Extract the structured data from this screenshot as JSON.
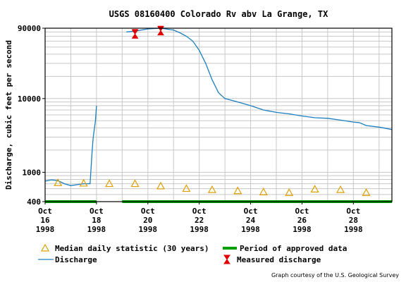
{
  "chart_data": {
    "type": "line",
    "title": "USGS 08160400 Colorado Rv abv La Grange, TX",
    "ylabel": "Discharge, cubic feet per second",
    "xlabel": "",
    "y_scale": "log",
    "ylim": [
      400,
      90000
    ],
    "y_ticks": [
      {
        "value": 90000,
        "label": "90000"
      },
      {
        "value": 10000,
        "label": "10000"
      },
      {
        "value": 1000,
        "label": "1000"
      },
      {
        "value": 400,
        "label": "400"
      }
    ],
    "xlim": [
      "1998-10-16",
      "1998-10-29 12:00"
    ],
    "x_ticks": [
      {
        "date": "1998-10-16",
        "day": "Oct",
        "num": "16",
        "year": "1998"
      },
      {
        "date": "1998-10-18",
        "day": "Oct",
        "num": "18",
        "year": "1998"
      },
      {
        "date": "1998-10-20",
        "day": "Oct",
        "num": "20",
        "year": "1998"
      },
      {
        "date": "1998-10-22",
        "day": "Oct",
        "num": "22",
        "year": "1998"
      },
      {
        "date": "1998-10-24",
        "day": "Oct",
        "num": "24",
        "year": "1998"
      },
      {
        "date": "1998-10-26",
        "day": "Oct",
        "num": "26",
        "year": "1998"
      },
      {
        "date": "1998-10-28",
        "day": "Oct",
        "num": "28",
        "year": "1998"
      }
    ],
    "grid": true,
    "legend_position": "bottom",
    "series": [
      {
        "name": "Discharge",
        "kind": "line",
        "color": "#1a7fbf",
        "segments": [
          [
            [
              "1998-10-16 00:00",
              760
            ],
            [
              "1998-10-16 06:00",
              790
            ],
            [
              "1998-10-16 12:00",
              770
            ],
            [
              "1998-10-16 18:00",
              700
            ],
            [
              "1998-10-17 00:00",
              660
            ],
            [
              "1998-10-17 06:00",
              680
            ],
            [
              "1998-10-17 12:00",
              700
            ],
            [
              "1998-10-17 16:00",
              700
            ],
            [
              "1998-10-17 18:00",
              700
            ],
            [
              "1998-10-17 20:00",
              2000
            ],
            [
              "1998-10-17 21:00",
              3000
            ],
            [
              "1998-10-17 23:00",
              5000
            ],
            [
              "1998-10-18 00:00",
              8000
            ]
          ],
          [
            [
              "1998-10-19 04:00",
              80000
            ],
            [
              "1998-10-19 12:00",
              82000
            ],
            [
              "1998-10-20 00:00",
              88000
            ],
            [
              "1998-10-20 12:00",
              90000
            ],
            [
              "1998-10-21 00:00",
              85000
            ],
            [
              "1998-10-21 06:00",
              78000
            ],
            [
              "1998-10-21 12:00",
              70000
            ],
            [
              "1998-10-21 18:00",
              60000
            ],
            [
              "1998-10-22 00:00",
              45000
            ],
            [
              "1998-10-22 06:00",
              30000
            ],
            [
              "1998-10-22 12:00",
              18000
            ],
            [
              "1998-10-22 18:00",
              12000
            ],
            [
              "1998-10-23 00:00",
              10000
            ],
            [
              "1998-10-23 12:00",
              9000
            ],
            [
              "1998-10-24 00:00",
              8000
            ],
            [
              "1998-10-24 12:00",
              7000
            ],
            [
              "1998-10-25 00:00",
              6500
            ],
            [
              "1998-10-25 12:00",
              6200
            ],
            [
              "1998-10-26 00:00",
              5800
            ],
            [
              "1998-10-26 12:00",
              5500
            ],
            [
              "1998-10-27 00:00",
              5400
            ],
            [
              "1998-10-27 12:00",
              5100
            ],
            [
              "1998-10-28 00:00",
              4800
            ],
            [
              "1998-10-28 06:00",
              4700
            ],
            [
              "1998-10-28 12:00",
              4300
            ],
            [
              "1998-10-29 00:00",
              4100
            ],
            [
              "1998-10-29 12:00",
              3800
            ]
          ]
        ]
      },
      {
        "name": "Median daily statistic (30 years)",
        "kind": "points",
        "marker": "triangle",
        "color": "#e0a000",
        "points": [
          [
            "1998-10-16 12:00",
            720
          ],
          [
            "1998-10-17 12:00",
            710
          ],
          [
            "1998-10-18 12:00",
            700
          ],
          [
            "1998-10-19 12:00",
            700
          ],
          [
            "1998-10-20 12:00",
            650
          ],
          [
            "1998-10-21 12:00",
            600
          ],
          [
            "1998-10-22 12:00",
            580
          ],
          [
            "1998-10-23 12:00",
            560
          ],
          [
            "1998-10-24 12:00",
            540
          ],
          [
            "1998-10-25 12:00",
            530
          ],
          [
            "1998-10-26 12:00",
            590
          ],
          [
            "1998-10-27 12:00",
            580
          ],
          [
            "1998-10-28 12:00",
            530
          ]
        ]
      },
      {
        "name": "Period of approved data",
        "kind": "bar",
        "color": "#00a000",
        "ranges": [
          [
            "1998-10-16 00:00",
            "1998-10-18 00:00"
          ],
          [
            "1998-10-19 00:00",
            "1998-10-29 12:00"
          ]
        ]
      },
      {
        "name": "Measured discharge",
        "kind": "points",
        "marker": "hourglass",
        "color": "#e00000",
        "points": [
          [
            "1998-10-19 12:00",
            75000
          ],
          [
            "1998-10-20 12:00",
            83000
          ]
        ]
      }
    ],
    "legend": [
      {
        "label": "Median daily statistic (30 years)",
        "symbol": "triangle"
      },
      {
        "label": "Period of approved data",
        "symbol": "green-bar"
      },
      {
        "label": "Discharge",
        "symbol": "line"
      },
      {
        "label": "Measured discharge",
        "symbol": "hourglass"
      }
    ],
    "credit": "Graph courtesy of the U.S. Geological Survey"
  }
}
